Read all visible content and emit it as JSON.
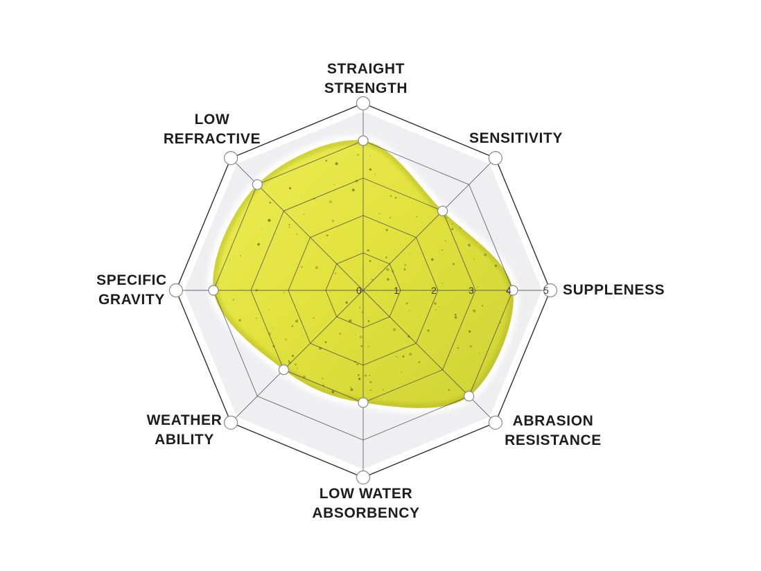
{
  "chart_data": {
    "type": "radar",
    "title": "",
    "categories": [
      "STRAIGHT STRENGTH",
      "SENSITIVITY",
      "SUPPLENESS",
      "ABRASION RESISTANCE",
      "LOW WATER ABSORBENCY",
      "WEATHER ABILITY",
      "SPECIFIC GRAVITY",
      "LOW REFRACTIVE"
    ],
    "labels_display": [
      "STRAIGHT\nSTRENGTH",
      "SENSITIVITY",
      "SUPPLENESS",
      "ABRASION\nRESISTANCE",
      "LOW WATER\nABSORBENCY",
      "WEATHER\nABILITY",
      "SPECIFIC\nGRAVITY",
      "LOW\nREFRACTIVE"
    ],
    "values": [
      4,
      3,
      4,
      4,
      3,
      3,
      4,
      4
    ],
    "axis_ticks": [
      "0",
      "1",
      "2",
      "3",
      "4",
      "5"
    ],
    "axis_range": [
      0,
      5
    ],
    "grid": true,
    "grid_shape": "octagon",
    "legend": "none",
    "colors": {
      "fill_light": "#ecec4e",
      "fill_mid": "#e0e134",
      "fill_dark": "#ccd02a",
      "fill_edge": "#a9af16",
      "speckle": "#6f7614",
      "panel": "#efeff2",
      "grid_line": "#4c4c4c",
      "outer_line": "#2d2d2d",
      "point_fill": "#ffffff",
      "point_stroke": "#8a8a8a",
      "label_color": "#1d1d1d",
      "tick_color": "#3a3a3a",
      "background": "#ffffff"
    }
  }
}
